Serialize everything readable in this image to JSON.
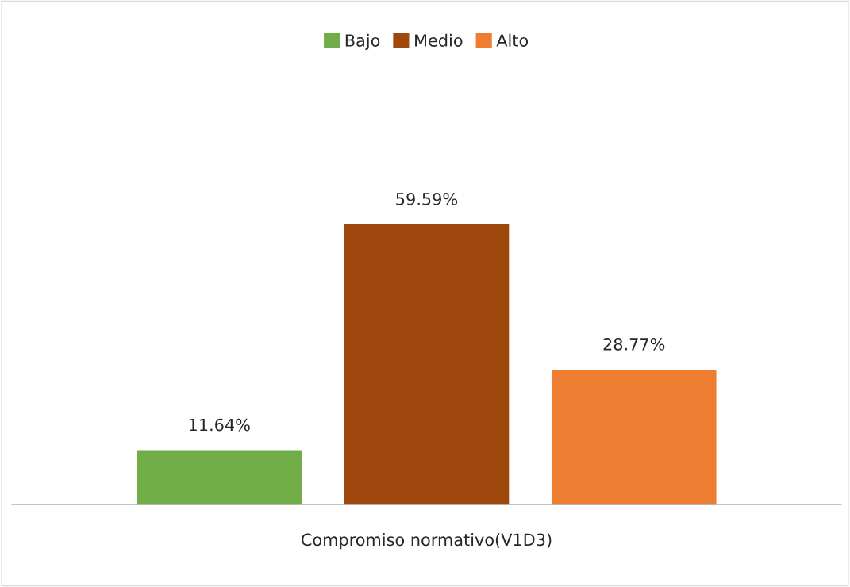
{
  "chart_data": {
    "type": "bar",
    "xlabel": "Compromiso normativo(V1D3)",
    "categories": [
      null
    ],
    "legend": "top",
    "grid": false,
    "tick_labels": false,
    "series": [
      {
        "name": "Bajo",
        "color": "#70ad47",
        "values": [
          11.64
        ],
        "value_labels": [
          "11.64%"
        ]
      },
      {
        "name": "Medio",
        "color": "#9e480e",
        "values": [
          59.59
        ],
        "value_labels": [
          "59.59%"
        ]
      },
      {
        "name": "Alto",
        "color": "#ed7d31",
        "values": [
          28.77
        ],
        "value_labels": [
          "28.77%"
        ]
      }
    ]
  }
}
